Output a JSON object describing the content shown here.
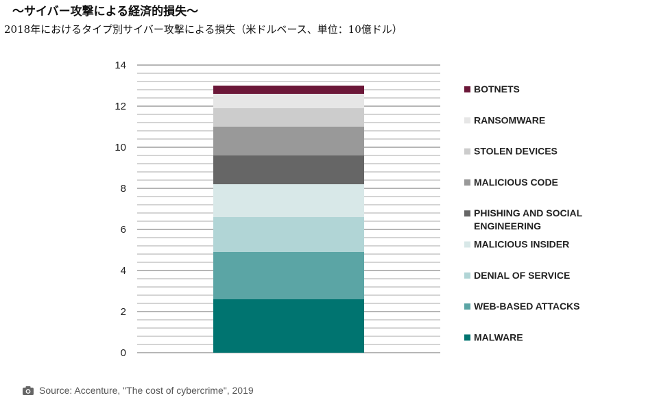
{
  "title": "～サイバー攻撃による経済的損失～",
  "subtitle": "2018年におけるタイプ別サイバー攻撃による損失（米ドルベース、単位：10億ドル）",
  "source": "Source: Accenture, \"The cost of cybercrime\", 2019",
  "chart_data": {
    "type": "bar",
    "stacked": true,
    "categories": [
      ""
    ],
    "ylim": [
      0,
      14
    ],
    "yticks": [
      0,
      2,
      4,
      6,
      8,
      10,
      12,
      14
    ],
    "grid": true,
    "legend_position": "right",
    "series": [
      {
        "name": "MALWARE",
        "values": [
          2.6
        ],
        "color": "#007470"
      },
      {
        "name": "WEB-BASED ATTACKS",
        "values": [
          2.3
        ],
        "color": "#5ba5a5"
      },
      {
        "name": "DENIAL OF SERVICE",
        "values": [
          1.7
        ],
        "color": "#b1d5d6"
      },
      {
        "name": "MALICIOUS INSIDER",
        "values": [
          1.6
        ],
        "color": "#d8e8e8"
      },
      {
        "name": "PHISHING AND SOCIAL ENGINEERING",
        "values": [
          1.4
        ],
        "color": "#666666"
      },
      {
        "name": "MALICIOUS CODE",
        "values": [
          1.4
        ],
        "color": "#999999"
      },
      {
        "name": "STOLEN DEVICES",
        "values": [
          0.9
        ],
        "color": "#cccccc"
      },
      {
        "name": "RANSOMWARE",
        "values": [
          0.7
        ],
        "color": "#e6e6e6"
      },
      {
        "name": "BOTNETS",
        "values": [
          0.4
        ],
        "color": "#6b1738"
      }
    ],
    "legend_order": [
      "BOTNETS",
      "RANSOMWARE",
      "STOLEN DEVICES",
      "MALICIOUS CODE",
      "PHISHING AND SOCIAL ENGINEERING",
      "MALICIOUS INSIDER",
      "DENIAL OF SERVICE",
      "WEB-BASED ATTACKS",
      "MALWARE"
    ]
  }
}
